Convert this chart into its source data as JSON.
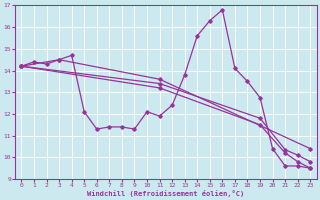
{
  "xlabel": "Windchill (Refroidissement éolien,°C)",
  "bg_color": "#cce9f0",
  "line_color": "#993399",
  "grid_color": "#ffffff",
  "xlim": [
    -0.5,
    23.5
  ],
  "ylim": [
    9,
    17
  ],
  "xticks": [
    0,
    1,
    2,
    3,
    4,
    5,
    6,
    7,
    8,
    9,
    10,
    11,
    12,
    13,
    14,
    15,
    16,
    17,
    18,
    19,
    20,
    21,
    22,
    23
  ],
  "yticks": [
    9,
    10,
    11,
    12,
    13,
    14,
    15,
    16,
    17
  ],
  "zigzag": {
    "x": [
      0,
      1,
      2,
      3,
      4,
      5,
      6,
      7,
      8,
      9,
      10,
      11,
      12,
      13,
      14,
      15,
      16,
      17,
      18,
      19,
      20,
      21,
      22,
      23
    ],
    "y": [
      14.2,
      14.4,
      14.3,
      14.5,
      14.7,
      12.1,
      11.3,
      11.4,
      11.4,
      11.3,
      12.1,
      11.9,
      12.4,
      13.8,
      15.6,
      16.3,
      16.8,
      14.1,
      13.5,
      12.75,
      10.4,
      9.6,
      9.6,
      9.5
    ]
  },
  "straight_lines": [
    {
      "x": [
        0,
        3,
        11,
        23
      ],
      "y": [
        14.2,
        14.5,
        13.6,
        10.4
      ]
    },
    {
      "x": [
        0,
        11,
        19,
        21,
        22,
        23
      ],
      "y": [
        14.2,
        13.4,
        11.8,
        10.35,
        10.1,
        9.8
      ]
    },
    {
      "x": [
        0,
        11,
        19,
        21,
        22,
        23
      ],
      "y": [
        14.2,
        13.2,
        11.5,
        10.2,
        9.8,
        9.5
      ]
    }
  ]
}
